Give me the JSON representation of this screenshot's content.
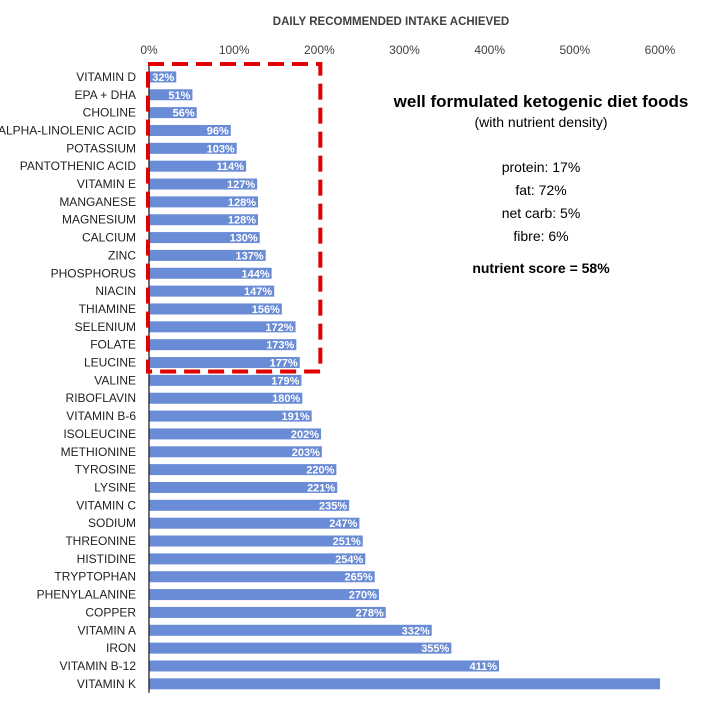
{
  "chart_data": {
    "type": "bar",
    "orientation": "horizontal",
    "title": "DAILY RECOMMENDED INTAKE ACHIEVED",
    "xlim": [
      0,
      600
    ],
    "xticks": [
      "0%",
      "100%",
      "200%",
      "300%",
      "400%",
      "500%",
      "600%"
    ],
    "grid": false,
    "bar_color": "#6A8BD6",
    "highlight_color": "#E00000",
    "highlight_box": "VITAMIN D to LEUCINE, 0% to 200%",
    "categories": [
      "VITAMIN D",
      "EPA + DHA",
      "CHOLINE",
      "ALPHA-LINOLENIC ACID",
      "POTASSIUM",
      "PANTOTHENIC ACID",
      "VITAMIN E",
      "MANGANESE",
      "MAGNESIUM",
      "CALCIUM",
      "ZINC",
      "PHOSPHORUS",
      "NIACIN",
      "THIAMINE",
      "SELENIUM",
      "FOLATE",
      "LEUCINE",
      "VALINE",
      "RIBOFLAVIN",
      "VITAMIN B-6",
      "ISOLEUCINE",
      "METHIONINE",
      "TYROSINE",
      "LYSINE",
      "VITAMIN C",
      "SODIUM",
      "THREONINE",
      "HISTIDINE",
      "TRYPTOPHAN",
      "PHENYLALANINE",
      "COPPER",
      "VITAMIN A",
      "IRON",
      "VITAMIN B-12",
      "VITAMIN K"
    ],
    "values": [
      32,
      51,
      56,
      96,
      103,
      114,
      127,
      128,
      128,
      130,
      137,
      144,
      147,
      156,
      172,
      173,
      177,
      179,
      180,
      191,
      202,
      203,
      220,
      221,
      235,
      247,
      251,
      254,
      265,
      270,
      278,
      332,
      355,
      411,
      600
    ],
    "labels": [
      "32%",
      "51%",
      "56%",
      "96%",
      "103%",
      "114%",
      "127%",
      "128%",
      "128%",
      "130%",
      "137%",
      "144%",
      "147%",
      "156%",
      "172%",
      "173%",
      "177%",
      "179%",
      "180%",
      "191%",
      "202%",
      "203%",
      "220%",
      "221%",
      "235%",
      "247%",
      "251%",
      "254%",
      "265%",
      "270%",
      "278%",
      "332%",
      "355%",
      "411%",
      ""
    ]
  },
  "panel": {
    "title": "well formulated ketogenic diet foods",
    "subtitle": "(with nutrient density)",
    "protein": "protein: 17%",
    "fat": "fat: 72%",
    "net_carb": "net carb: 5%",
    "fibre": "fibre: 6%",
    "score": "nutrient score = 58%"
  }
}
